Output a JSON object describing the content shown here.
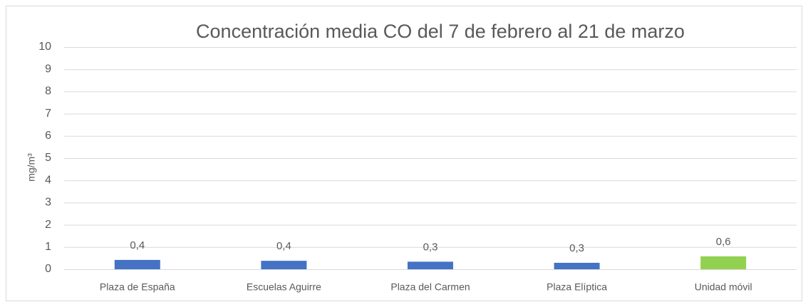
{
  "chart_data": {
    "type": "bar",
    "title": "Concentración media CO del 7 de febrero al 21 de marzo",
    "y_label": "mg/m³",
    "categories": [
      "Plaza de España",
      "Escuelas Aguirre",
      "Plaza del Carmen",
      "Plaza Elíptica",
      "Unidad móvil"
    ],
    "values": [
      0.42,
      0.38,
      0.34,
      0.29,
      0.58
    ],
    "value_labels": [
      "0,4",
      "0,4",
      "0,3",
      "0,3",
      "0,6"
    ],
    "colors": [
      "#4472c4",
      "#4472c4",
      "#4472c4",
      "#4472c4",
      "#92d050"
    ],
    "ylim": [
      0,
      10
    ],
    "yticks": [
      0,
      1,
      2,
      3,
      4,
      5,
      6,
      7,
      8,
      9,
      10
    ],
    "grid": true
  }
}
